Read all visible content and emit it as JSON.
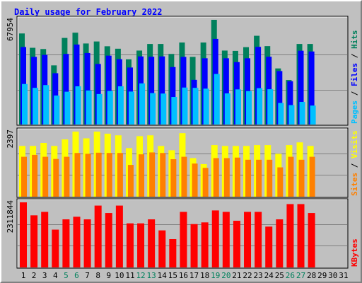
{
  "title": "Daily usage for February 2022",
  "colors": {
    "hits": "#00805c",
    "files": "#0000ff",
    "pages": "#00c0ff",
    "visits": "#ffff00",
    "sites": "#ff8000",
    "kbytes": "#ff0000",
    "weekend_label": "#00805c",
    "weekday_label": "#000000",
    "title": "#0000ff"
  },
  "chart_data": [
    {
      "type": "bar",
      "title": "Daily usage for February 2022",
      "categories": [
        "1",
        "2",
        "3",
        "4",
        "5",
        "6",
        "7",
        "8",
        "9",
        "10",
        "11",
        "12",
        "13",
        "14",
        "15",
        "16",
        "17",
        "18",
        "19",
        "20",
        "21",
        "22",
        "23",
        "24",
        "25",
        "26",
        "27",
        "28",
        "29",
        "30",
        "31"
      ],
      "weekend_days": [
        "5",
        "6",
        "12",
        "13",
        "19",
        "20",
        "26",
        "27"
      ],
      "ylabel_max": "67954",
      "ylim": [
        0,
        67954
      ],
      "grid": true,
      "legend": [
        {
          "label": "Pages",
          "color": "#00c0ff"
        },
        {
          "label": "Files",
          "color": "#0000ff"
        },
        {
          "label": "Hits",
          "color": "#00805c"
        }
      ],
      "series": [
        {
          "name": "Hits",
          "values": [
            59100,
            49800,
            49000,
            38400,
            56200,
            59600,
            52600,
            53900,
            50800,
            49200,
            42300,
            48000,
            52300,
            52300,
            45800,
            53200,
            43900,
            53200,
            67954,
            48000,
            47800,
            50200,
            57600,
            50900,
            36400,
            28900,
            52300,
            52300,
            null,
            null,
            null
          ]
        },
        {
          "name": "Files",
          "values": [
            50300,
            43900,
            45200,
            33300,
            45800,
            51900,
            46400,
            39300,
            44700,
            42400,
            37000,
            44200,
            44000,
            44200,
            37300,
            43900,
            29000,
            43000,
            55600,
            43000,
            40500,
            43000,
            50400,
            44000,
            34700,
            28100,
            47900,
            47400,
            null,
            null,
            null
          ]
        },
        {
          "name": "Pages",
          "values": [
            26300,
            23800,
            25600,
            18800,
            21300,
            24800,
            22100,
            19800,
            21800,
            24800,
            21400,
            26700,
            20400,
            20100,
            17900,
            24000,
            23800,
            23300,
            32800,
            20200,
            22800,
            21700,
            23600,
            22900,
            14000,
            12600,
            14700,
            12300,
            null,
            null,
            null
          ]
        }
      ]
    },
    {
      "type": "bar",
      "categories": [
        "1",
        "2",
        "3",
        "4",
        "5",
        "6",
        "7",
        "8",
        "9",
        "10",
        "11",
        "12",
        "13",
        "14",
        "15",
        "16",
        "17",
        "18",
        "19",
        "20",
        "21",
        "22",
        "23",
        "24",
        "25",
        "26",
        "27",
        "28",
        "29",
        "30",
        "31"
      ],
      "ylabel_max": "2397",
      "ylim": [
        0,
        2397
      ],
      "grid": true,
      "legend": [
        {
          "label": "Sites",
          "color": "#ff8000"
        },
        {
          "label": "Visits",
          "color": "#ffff00"
        }
      ],
      "series": [
        {
          "name": "Visits",
          "values": [
            1870,
            1870,
            1980,
            1870,
            2110,
            2397,
            2150,
            2397,
            2320,
            2260,
            1790,
            2230,
            2260,
            1870,
            1710,
            2340,
            1420,
            1200,
            1900,
            1870,
            1870,
            1870,
            1900,
            1900,
            1580,
            1900,
            2000,
            1870,
            null,
            null,
            null
          ]
        },
        {
          "name": "Sites",
          "values": [
            1470,
            1540,
            1470,
            1390,
            1470,
            1610,
            1580,
            1620,
            1610,
            1610,
            1170,
            1560,
            1630,
            1610,
            1380,
            1470,
            1220,
            1060,
            1420,
            1420,
            1440,
            1360,
            1360,
            1360,
            1080,
            1470,
            1360,
            1470,
            null,
            null,
            null
          ]
        }
      ]
    },
    {
      "type": "bar",
      "categories": [
        "1",
        "2",
        "3",
        "4",
        "5",
        "6",
        "7",
        "8",
        "9",
        "10",
        "11",
        "12",
        "13",
        "14",
        "15",
        "16",
        "17",
        "18",
        "19",
        "20",
        "21",
        "22",
        "23",
        "24",
        "25",
        "26",
        "27",
        "28",
        "29",
        "30",
        "31"
      ],
      "ylabel_max": "2311844",
      "ylim": [
        0,
        2311844
      ],
      "grid": true,
      "legend": [
        {
          "label": "KBytes",
          "color": "#ff0000"
        }
      ],
      "series": [
        {
          "name": "KBytes",
          "values": [
            2311844,
            1851000,
            1973000,
            1343000,
            1708000,
            1800000,
            1708000,
            2197000,
            1933000,
            2197000,
            1566000,
            1566000,
            1708000,
            1316000,
            1005000,
            1973000,
            1540000,
            1600000,
            2025000,
            1973000,
            1658000,
            1973000,
            1973000,
            1450000,
            1708000,
            2250000,
            2250000,
            1933000,
            null,
            null,
            null
          ]
        }
      ]
    }
  ]
}
